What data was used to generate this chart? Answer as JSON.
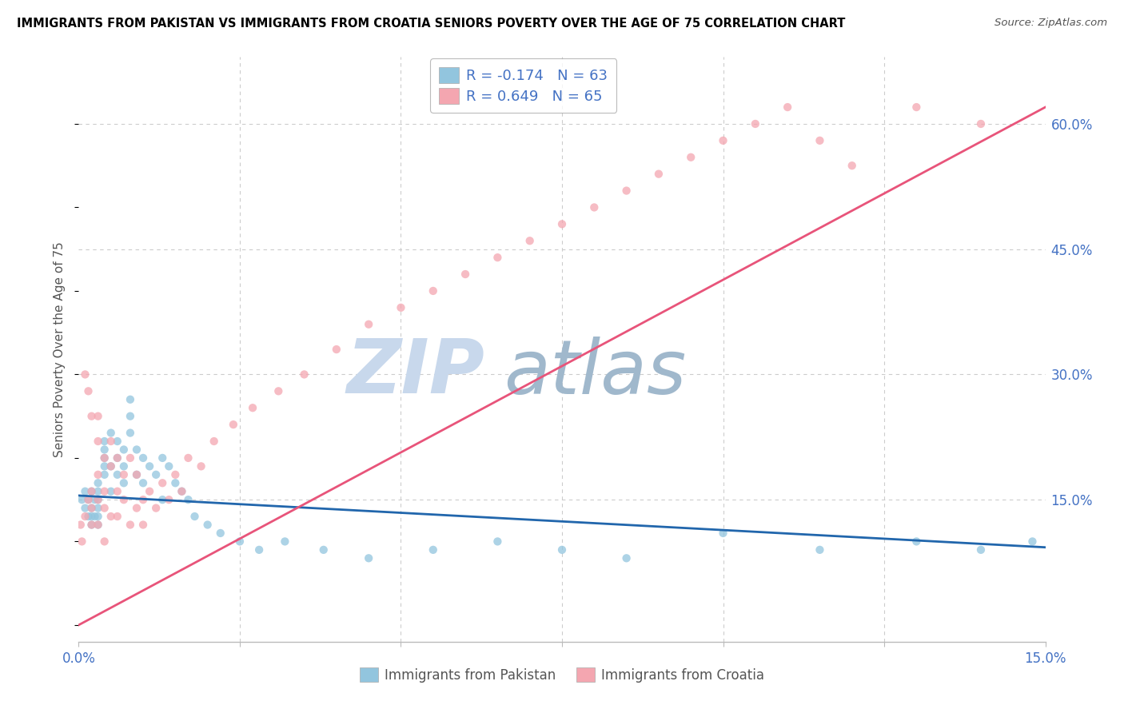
{
  "title": "IMMIGRANTS FROM PAKISTAN VS IMMIGRANTS FROM CROATIA SENIORS POVERTY OVER THE AGE OF 75 CORRELATION CHART",
  "source": "Source: ZipAtlas.com",
  "ylabel": "Seniors Poverty Over the Age of 75",
  "xlim": [
    0.0,
    0.15
  ],
  "ylim": [
    -0.02,
    0.68
  ],
  "pakistan_R": -0.174,
  "pakistan_N": 63,
  "croatia_R": 0.649,
  "croatia_N": 65,
  "pakistan_color": "#92c5de",
  "croatia_color": "#f4a6b0",
  "pakistan_line_color": "#2166ac",
  "croatia_line_color": "#e8547a",
  "watermark_zip": "ZIP",
  "watermark_atlas": "atlas",
  "watermark_color_zip": "#c8d8ec",
  "watermark_color_atlas": "#a0b8cc",
  "background_color": "#ffffff",
  "grid_color": "#cccccc",
  "axis_label_color": "#4472c4",
  "title_color": "#000000",
  "pakistan_trend_x0": 0.0,
  "pakistan_trend_y0": 0.155,
  "pakistan_trend_x1": 0.15,
  "pakistan_trend_y1": 0.093,
  "croatia_trend_x0": 0.0,
  "croatia_trend_y0": 0.0,
  "croatia_trend_x1": 0.15,
  "croatia_trend_y1": 0.62,
  "pakistan_scatter_x": [
    0.0005,
    0.001,
    0.001,
    0.0015,
    0.0015,
    0.002,
    0.002,
    0.002,
    0.002,
    0.0025,
    0.0025,
    0.003,
    0.003,
    0.003,
    0.003,
    0.003,
    0.003,
    0.004,
    0.004,
    0.004,
    0.004,
    0.004,
    0.005,
    0.005,
    0.005,
    0.006,
    0.006,
    0.006,
    0.007,
    0.007,
    0.007,
    0.008,
    0.008,
    0.008,
    0.009,
    0.009,
    0.01,
    0.01,
    0.011,
    0.012,
    0.013,
    0.013,
    0.014,
    0.015,
    0.016,
    0.017,
    0.018,
    0.02,
    0.022,
    0.025,
    0.028,
    0.032,
    0.038,
    0.045,
    0.055,
    0.065,
    0.075,
    0.085,
    0.1,
    0.115,
    0.13,
    0.14,
    0.148
  ],
  "pakistan_scatter_y": [
    0.15,
    0.14,
    0.16,
    0.13,
    0.15,
    0.14,
    0.16,
    0.13,
    0.12,
    0.15,
    0.13,
    0.14,
    0.16,
    0.15,
    0.13,
    0.12,
    0.17,
    0.21,
    0.19,
    0.22,
    0.2,
    0.18,
    0.19,
    0.16,
    0.23,
    0.2,
    0.18,
    0.22,
    0.21,
    0.19,
    0.17,
    0.27,
    0.25,
    0.23,
    0.21,
    0.18,
    0.2,
    0.17,
    0.19,
    0.18,
    0.2,
    0.15,
    0.19,
    0.17,
    0.16,
    0.15,
    0.13,
    0.12,
    0.11,
    0.1,
    0.09,
    0.1,
    0.09,
    0.08,
    0.09,
    0.1,
    0.09,
    0.08,
    0.11,
    0.09,
    0.1,
    0.09,
    0.1
  ],
  "croatia_scatter_x": [
    0.0003,
    0.0005,
    0.001,
    0.001,
    0.0015,
    0.0015,
    0.002,
    0.002,
    0.002,
    0.002,
    0.003,
    0.003,
    0.003,
    0.003,
    0.003,
    0.004,
    0.004,
    0.004,
    0.004,
    0.005,
    0.005,
    0.005,
    0.006,
    0.006,
    0.006,
    0.007,
    0.007,
    0.008,
    0.008,
    0.009,
    0.009,
    0.01,
    0.01,
    0.011,
    0.012,
    0.013,
    0.014,
    0.015,
    0.016,
    0.017,
    0.019,
    0.021,
    0.024,
    0.027,
    0.031,
    0.035,
    0.04,
    0.045,
    0.05,
    0.055,
    0.06,
    0.065,
    0.07,
    0.075,
    0.08,
    0.085,
    0.09,
    0.095,
    0.1,
    0.105,
    0.11,
    0.115,
    0.12,
    0.13,
    0.14
  ],
  "croatia_scatter_y": [
    0.12,
    0.1,
    0.13,
    0.3,
    0.15,
    0.28,
    0.14,
    0.25,
    0.16,
    0.12,
    0.18,
    0.22,
    0.15,
    0.25,
    0.12,
    0.14,
    0.2,
    0.16,
    0.1,
    0.13,
    0.19,
    0.22,
    0.16,
    0.2,
    0.13,
    0.18,
    0.15,
    0.12,
    0.2,
    0.14,
    0.18,
    0.15,
    0.12,
    0.16,
    0.14,
    0.17,
    0.15,
    0.18,
    0.16,
    0.2,
    0.19,
    0.22,
    0.24,
    0.26,
    0.28,
    0.3,
    0.33,
    0.36,
    0.38,
    0.4,
    0.42,
    0.44,
    0.46,
    0.48,
    0.5,
    0.52,
    0.54,
    0.56,
    0.58,
    0.6,
    0.62,
    0.58,
    0.55,
    0.62,
    0.6
  ]
}
